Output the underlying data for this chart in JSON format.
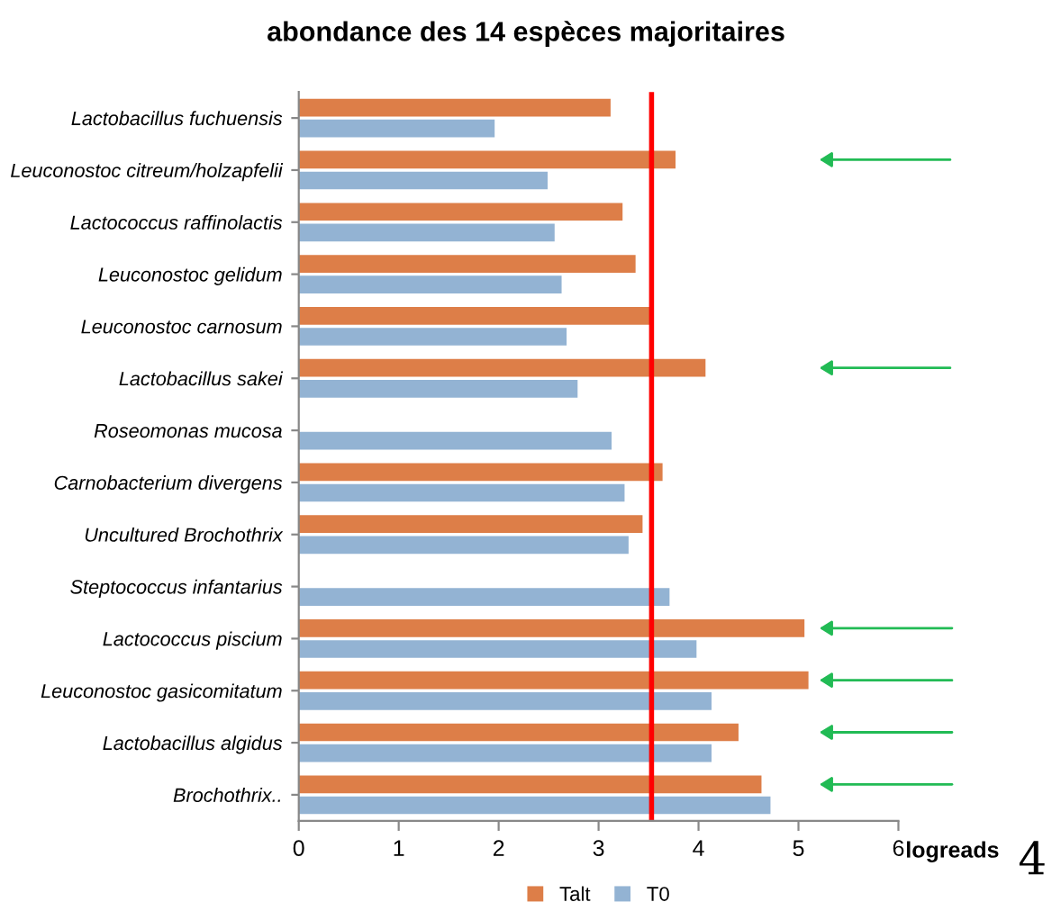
{
  "chart_data": {
    "type": "bar",
    "orientation": "horizontal",
    "title": "abondance des 14 espèces majoritaires",
    "xlabel": "logreads",
    "categories": [
      "Lactobacillus fuchuensis",
      "Leuconostoc citreum/holzapfelii",
      "Lactococcus raffinolactis",
      "Leuconostoc gelidum",
      "Leuconostoc carnosum",
      "Lactobacillus sakei",
      "Roseomonas mucosa",
      "Carnobacterium divergens",
      "Uncultured Brochothrix",
      "Steptococcus infantarius",
      "Lactococcus piscium",
      "Leuconostoc gasicomitatum",
      "Lactobacillus algidus",
      "Brochothrix.."
    ],
    "series": [
      {
        "name": "Talt",
        "color": "#dd7e48",
        "values": [
          3.12,
          3.77,
          3.24,
          3.37,
          3.53,
          4.07,
          null,
          3.64,
          3.44,
          null,
          5.06,
          5.1,
          4.4,
          4.63
        ]
      },
      {
        "name": "T0",
        "color": "#93b3d3",
        "values": [
          1.96,
          2.49,
          2.56,
          2.63,
          2.68,
          2.79,
          3.13,
          3.26,
          3.3,
          3.71,
          3.98,
          4.13,
          4.13,
          4.72
        ]
      }
    ],
    "xlim": [
      0,
      6
    ],
    "xticks": [
      0,
      1,
      2,
      3,
      4,
      5,
      6
    ],
    "ref_lines": [
      {
        "axis": "x",
        "value": 3.53,
        "color": "#ff0000"
      }
    ],
    "legend": "bottom",
    "annotations": [
      "4"
    ]
  }
}
